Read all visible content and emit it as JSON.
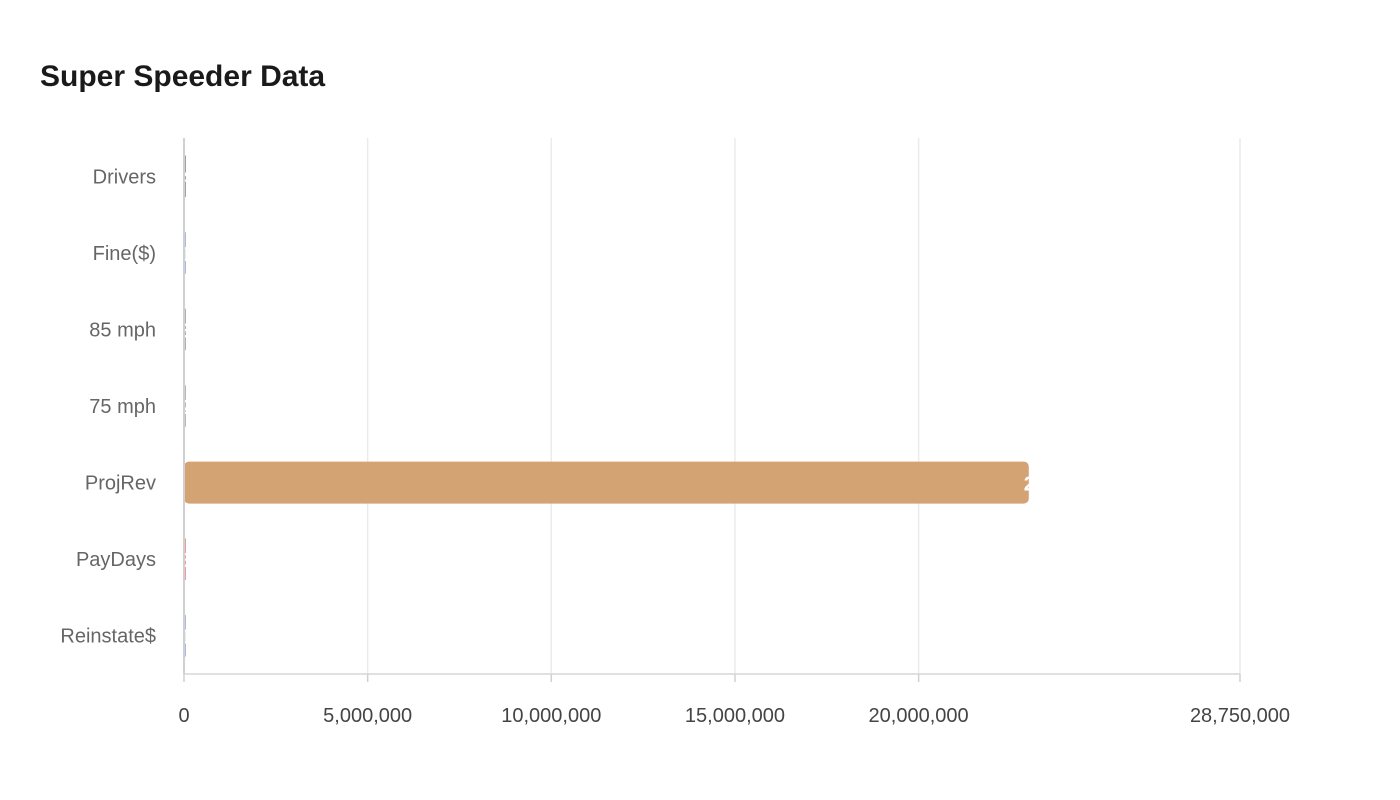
{
  "chart_data": {
    "type": "bar",
    "orientation": "horizontal",
    "title": "Super Speeder Data",
    "categories": [
      "Drivers",
      "Fine($)",
      "85 mph",
      "75 mph",
      "ProjRev",
      "PayDays",
      "Reinstate$"
    ],
    "values": [
      4000,
      1000,
      3000,
      2000,
      23000000,
      3000,
      1000
    ],
    "colors": [
      "#444444",
      "#5a6fd6",
      "#5f5f6f",
      "#6f6f6f",
      "#d4a373",
      "#d93a2b",
      "#5a6fd6"
    ],
    "xlim": [
      0,
      28750000
    ],
    "xticks": [
      0,
      5000000,
      10000000,
      15000000,
      20000000,
      28750000
    ],
    "xtick_labels": [
      "0",
      "5,000,000",
      "10,000,000",
      "15,000,000",
      "20,000,000",
      "28,750,000"
    ],
    "grid": true,
    "data_label_color": "#ffffff"
  }
}
